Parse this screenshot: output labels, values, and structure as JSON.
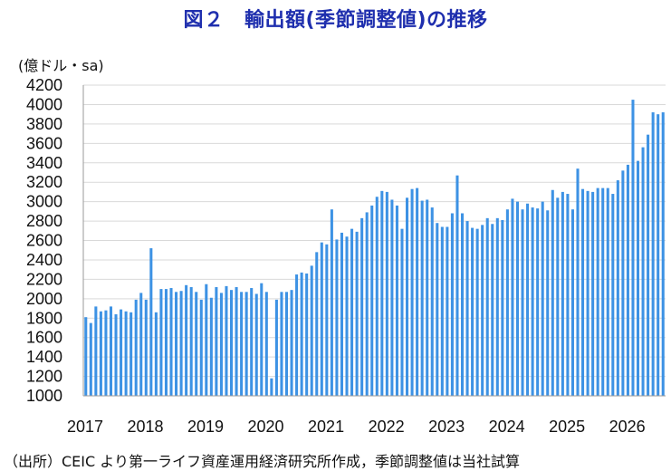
{
  "title": "図２　輸出額(季節調整値)の推移",
  "unit_label": "(億ドル・sa)",
  "source_note": "（出所）CEIC より第一ライフ資産運用経済研究所作成，季節調整値は当社試算",
  "colors": {
    "bar": "#3d92e4",
    "title": "#1f2fae",
    "grid": "#d9d9d9",
    "axis": "#9a9a9a"
  },
  "chart_data": {
    "type": "bar",
    "title": "図２　輸出額(季節調整値)の推移",
    "ylabel": "(億ドル・sa)",
    "xlabel": "",
    "ylim": [
      1000,
      4200
    ],
    "yticks": [
      1000,
      1200,
      1400,
      1600,
      1800,
      2000,
      2200,
      2400,
      2600,
      2800,
      3000,
      3200,
      3400,
      3600,
      3800,
      4000,
      4200
    ],
    "grid": true,
    "legend": "none",
    "x_labels": [
      "2017",
      "2018",
      "2019",
      "2020",
      "2021",
      "2022",
      "2023",
      "2024",
      "2025",
      "2026"
    ],
    "start": "2017-01",
    "frequency": "monthly",
    "values": [
      1810,
      1750,
      1920,
      1870,
      1880,
      1920,
      1840,
      1890,
      1870,
      1860,
      1990,
      2060,
      1990,
      2520,
      1860,
      2100,
      2100,
      2110,
      2070,
      2080,
      2140,
      2120,
      2070,
      1990,
      2150,
      2010,
      2120,
      2060,
      2130,
      2090,
      2120,
      2070,
      2070,
      2110,
      2050,
      2160,
      2070,
      1180,
      1990,
      2070,
      2070,
      2090,
      2250,
      2270,
      2260,
      2340,
      2480,
      2580,
      2560,
      2920,
      2610,
      2680,
      2640,
      2720,
      2690,
      2830,
      2890,
      2960,
      3050,
      3110,
      3100,
      3020,
      2960,
      2720,
      3040,
      3130,
      3140,
      3010,
      3020,
      2940,
      2780,
      2740,
      2740,
      2880,
      3270,
      2880,
      2800,
      2730,
      2720,
      2760,
      2830,
      2770,
      2830,
      2810,
      2920,
      3030,
      3000,
      2920,
      2980,
      2940,
      2930,
      3000,
      2910,
      3120,
      3040,
      3100,
      3080,
      2920,
      3340,
      3130,
      3110,
      3100,
      3140,
      3140,
      3140,
      3080,
      3220,
      3320,
      3380,
      4050,
      3420,
      3560,
      3690,
      3920,
      3900,
      3920
    ]
  }
}
